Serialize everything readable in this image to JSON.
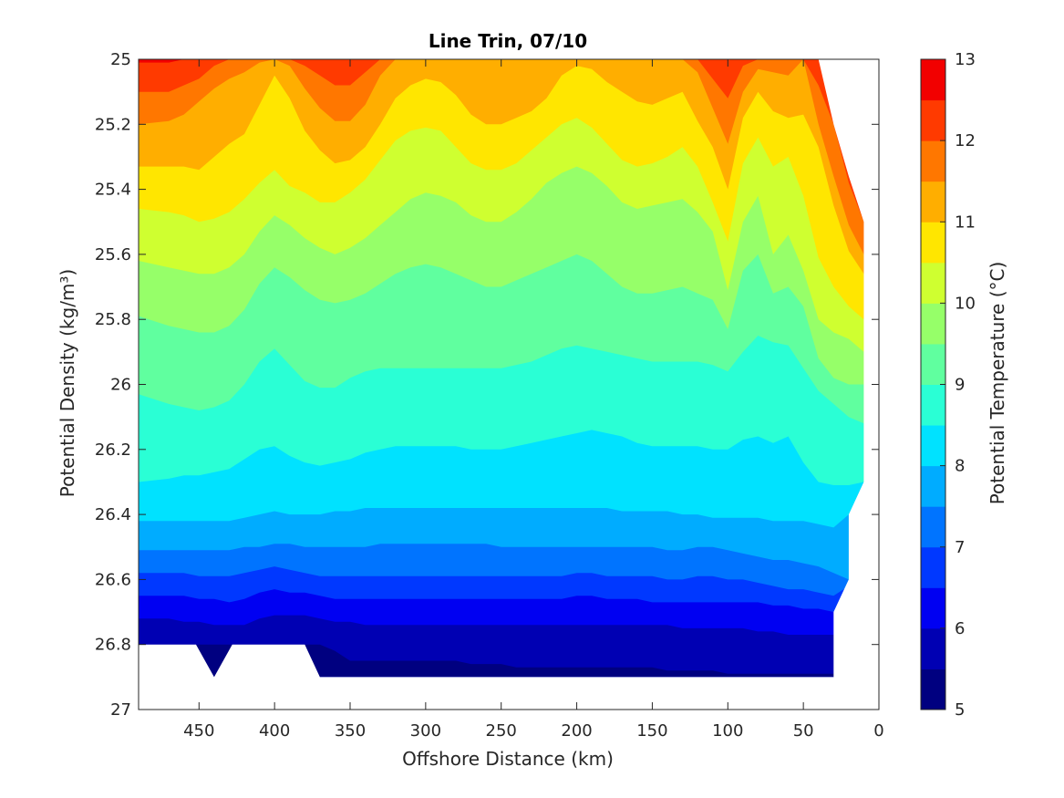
{
  "chart_data": {
    "type": "filled-contour",
    "title": "Line Trin, 07/10",
    "xlabel": "Offshore Distance (km)",
    "ylabel": "Potential Density (kg/m³)",
    "colorbar_label": "Potential Temperature (°C)",
    "x_range": [
      490,
      0
    ],
    "x_reversed": true,
    "y_range": [
      25,
      27
    ],
    "y_reversed": true,
    "x_ticks": [
      "450",
      "400",
      "350",
      "300",
      "250",
      "200",
      "150",
      "100",
      "50",
      "0"
    ],
    "y_ticks": [
      "25",
      "25.2",
      "25.4",
      "25.6",
      "25.8",
      "26",
      "26.2",
      "26.4",
      "26.6",
      "26.8",
      "27"
    ],
    "colorbar_ticks": [
      "5",
      "6",
      "7",
      "8",
      "9",
      "10",
      "11",
      "12",
      "13"
    ],
    "colorbar_range": [
      5,
      13
    ],
    "level_step": 0.5,
    "levels": [
      5,
      5.5,
      6,
      6.5,
      7,
      7.5,
      8,
      8.5,
      9,
      9.5,
      10,
      10.5,
      11,
      11.5,
      12,
      12.5,
      13
    ],
    "colormap": [
      "#000080",
      "#0000b3",
      "#0000f2",
      "#0038ff",
      "#0074ff",
      "#00acff",
      "#00e2ff",
      "#2affd5",
      "#60ff9f",
      "#96ff69",
      "#cfff30",
      "#ffe600",
      "#ffae00",
      "#ff7700",
      "#ff3a00",
      "#f20000",
      "#b30000"
    ],
    "x_stations": [
      490,
      470,
      460,
      450,
      440,
      430,
      420,
      410,
      400,
      390,
      380,
      370,
      360,
      350,
      340,
      330,
      320,
      310,
      300,
      290,
      280,
      270,
      260,
      250,
      240,
      230,
      220,
      210,
      200,
      190,
      180,
      170,
      160,
      150,
      140,
      130,
      120,
      110,
      100,
      90,
      80,
      70,
      60,
      50,
      40,
      30,
      20,
      10
    ],
    "data_bottom_density": 26.9,
    "shallow_gap": {
      "x_start": 490,
      "x_end": 370,
      "bottom_density": 26.8,
      "notch_x": 440,
      "notch_density": 26.9
    },
    "isopycnal_depth_of_isotherms": [
      {
        "temperature": 12.5,
        "density": [
          25.01,
          25.01,
          25.0,
          25.0,
          25.0,
          25.0,
          25.0,
          25.0,
          25.0,
          25.0,
          25.0,
          25.0,
          25.0,
          25.0,
          25.0,
          25.0,
          25.0,
          25.0,
          25.0,
          25.0,
          25.0,
          25.0,
          25.0,
          25.0,
          25.0,
          25.0,
          25.0,
          25.0,
          25.0,
          25.0,
          25.0,
          25.0,
          25.0,
          25.0,
          25.0,
          25.0,
          25.0,
          25.0,
          25.0,
          25.0,
          25.0,
          25.0,
          25.0,
          25.0,
          25.0,
          25.0,
          25.0,
          25.0
        ]
      },
      {
        "temperature": 12.0,
        "density": [
          25.1,
          25.1,
          25.08,
          25.06,
          25.02,
          25.0,
          25.0,
          25.0,
          25.0,
          25.0,
          25.02,
          25.05,
          25.08,
          25.08,
          25.04,
          25.0,
          25.0,
          25.0,
          25.0,
          25.0,
          25.0,
          25.0,
          25.0,
          25.0,
          25.0,
          25.0,
          25.0,
          25.0,
          25.0,
          25.0,
          25.0,
          25.0,
          25.0,
          25.0,
          25.0,
          25.0,
          25.0,
          25.06,
          25.12,
          25.02,
          25.0,
          25.0,
          25.0,
          25.0,
          25.08,
          25.2,
          25.38,
          25.5
        ]
      },
      {
        "temperature": 11.5,
        "density": [
          25.2,
          25.19,
          25.17,
          25.13,
          25.09,
          25.06,
          25.04,
          25.01,
          25.0,
          25.02,
          25.09,
          25.15,
          25.19,
          25.19,
          25.14,
          25.05,
          25.0,
          25.0,
          25.0,
          25.0,
          25.0,
          25.0,
          25.0,
          25.0,
          25.0,
          25.0,
          25.0,
          25.0,
          25.0,
          25.0,
          25.0,
          25.0,
          25.0,
          25.0,
          25.0,
          25.0,
          25.04,
          25.15,
          25.26,
          25.1,
          25.03,
          25.04,
          25.05,
          25.0,
          25.2,
          25.36,
          25.51,
          25.6
        ]
      },
      {
        "temperature": 11.0,
        "density": [
          25.33,
          25.33,
          25.33,
          25.34,
          25.3,
          25.26,
          25.23,
          25.14,
          25.05,
          25.12,
          25.22,
          25.28,
          25.32,
          25.31,
          25.27,
          25.2,
          25.12,
          25.08,
          25.06,
          25.07,
          25.11,
          25.17,
          25.2,
          25.2,
          25.18,
          25.16,
          25.12,
          25.05,
          25.02,
          25.03,
          25.07,
          25.1,
          25.13,
          25.14,
          25.12,
          25.1,
          25.19,
          25.27,
          25.4,
          25.18,
          25.1,
          25.16,
          25.18,
          25.17,
          25.27,
          25.45,
          25.59,
          25.66
        ]
      },
      {
        "temperature": 10.5,
        "density": [
          25.46,
          25.47,
          25.48,
          25.5,
          25.49,
          25.47,
          25.43,
          25.38,
          25.34,
          25.39,
          25.41,
          25.44,
          25.44,
          25.41,
          25.37,
          25.31,
          25.25,
          25.22,
          25.21,
          25.22,
          25.27,
          25.32,
          25.34,
          25.34,
          25.32,
          25.28,
          25.24,
          25.2,
          25.18,
          25.21,
          25.26,
          25.31,
          25.33,
          25.32,
          25.3,
          25.27,
          25.33,
          25.44,
          25.56,
          25.32,
          25.24,
          25.33,
          25.3,
          25.42,
          25.61,
          25.7,
          25.76,
          25.8
        ]
      },
      {
        "temperature": 10.0,
        "density": [
          25.62,
          25.64,
          25.65,
          25.66,
          25.66,
          25.64,
          25.6,
          25.53,
          25.48,
          25.51,
          25.55,
          25.58,
          25.6,
          25.58,
          25.55,
          25.51,
          25.47,
          25.43,
          25.41,
          25.42,
          25.44,
          25.48,
          25.5,
          25.5,
          25.47,
          25.43,
          25.38,
          25.35,
          25.33,
          25.35,
          25.39,
          25.44,
          25.46,
          25.45,
          25.44,
          25.43,
          25.47,
          25.53,
          25.71,
          25.5,
          25.42,
          25.6,
          25.54,
          25.65,
          25.8,
          25.84,
          25.86,
          25.9
        ]
      },
      {
        "temperature": 9.5,
        "density": [
          25.79,
          25.82,
          25.83,
          25.84,
          25.84,
          25.82,
          25.77,
          25.69,
          25.64,
          25.67,
          25.71,
          25.74,
          25.75,
          25.74,
          25.72,
          25.69,
          25.66,
          25.64,
          25.63,
          25.64,
          25.66,
          25.68,
          25.7,
          25.7,
          25.68,
          25.66,
          25.64,
          25.62,
          25.6,
          25.62,
          25.66,
          25.7,
          25.72,
          25.72,
          25.71,
          25.7,
          25.72,
          25.74,
          25.83,
          25.65,
          25.6,
          25.72,
          25.7,
          25.76,
          25.92,
          25.98,
          26.0,
          26.0
        ]
      },
      {
        "temperature": 9.0,
        "density": [
          26.03,
          26.06,
          26.07,
          26.08,
          26.07,
          26.05,
          26.0,
          25.93,
          25.89,
          25.94,
          25.99,
          26.01,
          26.01,
          25.98,
          25.96,
          25.95,
          25.95,
          25.95,
          25.95,
          25.95,
          25.95,
          25.95,
          25.95,
          25.95,
          25.94,
          25.93,
          25.91,
          25.89,
          25.88,
          25.89,
          25.9,
          25.91,
          25.92,
          25.93,
          25.93,
          25.93,
          25.93,
          25.94,
          25.96,
          25.9,
          25.85,
          25.87,
          25.88,
          25.95,
          26.02,
          26.06,
          26.1,
          26.12
        ]
      },
      {
        "temperature": 8.5,
        "density": [
          26.3,
          26.29,
          26.28,
          26.28,
          26.27,
          26.26,
          26.23,
          26.2,
          26.19,
          26.22,
          26.24,
          26.25,
          26.24,
          26.23,
          26.21,
          26.2,
          26.19,
          26.19,
          26.19,
          26.19,
          26.19,
          26.2,
          26.2,
          26.2,
          26.19,
          26.18,
          26.17,
          26.16,
          26.15,
          26.14,
          26.15,
          26.16,
          26.18,
          26.19,
          26.19,
          26.19,
          26.19,
          26.2,
          26.2,
          26.17,
          26.16,
          26.18,
          26.16,
          26.24,
          26.3,
          26.31,
          26.31,
          26.3
        ]
      },
      {
        "temperature": 8.0,
        "density": [
          26.42,
          26.42,
          26.42,
          26.42,
          26.42,
          26.42,
          26.41,
          26.4,
          26.39,
          26.4,
          26.4,
          26.4,
          26.39,
          26.39,
          26.38,
          26.38,
          26.38,
          26.38,
          26.38,
          26.38,
          26.38,
          26.38,
          26.38,
          26.38,
          26.38,
          26.38,
          26.38,
          26.38,
          26.38,
          26.38,
          26.38,
          26.39,
          26.39,
          26.39,
          26.39,
          26.4,
          26.4,
          26.41,
          26.41,
          26.41,
          26.41,
          26.42,
          26.42,
          26.42,
          26.43,
          26.44,
          26.4,
          26.3
        ]
      },
      {
        "temperature": 7.5,
        "density": [
          26.51,
          26.51,
          26.51,
          26.51,
          26.51,
          26.51,
          26.5,
          26.5,
          26.49,
          26.49,
          26.5,
          26.5,
          26.5,
          26.5,
          26.5,
          26.49,
          26.49,
          26.49,
          26.49,
          26.49,
          26.49,
          26.49,
          26.49,
          26.5,
          26.5,
          26.5,
          26.5,
          26.5,
          26.5,
          26.5,
          26.5,
          26.5,
          26.5,
          26.5,
          26.51,
          26.51,
          26.5,
          26.5,
          26.51,
          26.52,
          26.53,
          26.54,
          26.54,
          26.55,
          26.56,
          26.58,
          26.6,
          26.6
        ]
      },
      {
        "temperature": 7.0,
        "density": [
          26.58,
          26.58,
          26.58,
          26.59,
          26.59,
          26.59,
          26.58,
          26.57,
          26.56,
          26.57,
          26.58,
          26.59,
          26.59,
          26.59,
          26.59,
          26.59,
          26.59,
          26.59,
          26.59,
          26.59,
          26.59,
          26.59,
          26.59,
          26.59,
          26.59,
          26.59,
          26.59,
          26.59,
          26.58,
          26.58,
          26.59,
          26.59,
          26.59,
          26.59,
          26.6,
          26.6,
          26.59,
          26.59,
          26.6,
          26.6,
          26.61,
          26.62,
          26.63,
          26.63,
          26.64,
          26.65,
          26.62,
          26.6
        ]
      },
      {
        "temperature": 6.5,
        "density": [
          26.65,
          26.65,
          26.65,
          26.66,
          26.66,
          26.67,
          26.66,
          26.64,
          26.63,
          26.64,
          26.64,
          26.65,
          26.66,
          26.66,
          26.66,
          26.66,
          26.66,
          26.66,
          26.66,
          26.66,
          26.66,
          26.66,
          26.66,
          26.66,
          26.66,
          26.66,
          26.66,
          26.66,
          26.65,
          26.65,
          26.66,
          26.66,
          26.66,
          26.67,
          26.67,
          26.67,
          26.67,
          26.67,
          26.67,
          26.67,
          26.67,
          26.68,
          26.68,
          26.69,
          26.69,
          26.7,
          26.7,
          26.7
        ]
      },
      {
        "temperature": 6.0,
        "density": [
          26.72,
          26.72,
          26.73,
          26.73,
          26.74,
          26.74,
          26.74,
          26.72,
          26.71,
          26.71,
          26.71,
          26.72,
          26.73,
          26.73,
          26.74,
          26.74,
          26.74,
          26.74,
          26.74,
          26.74,
          26.74,
          26.74,
          26.74,
          26.74,
          26.74,
          26.74,
          26.74,
          26.74,
          26.74,
          26.74,
          26.74,
          26.74,
          26.74,
          26.74,
          26.74,
          26.75,
          26.75,
          26.75,
          26.75,
          26.75,
          26.76,
          26.76,
          26.77,
          26.77,
          26.77,
          26.77,
          26.77,
          26.77
        ]
      },
      {
        "temperature": 5.5,
        "density": [
          26.8,
          26.8,
          26.8,
          26.8,
          26.8,
          26.8,
          26.8,
          26.8,
          26.8,
          26.8,
          26.8,
          26.8,
          26.82,
          26.85,
          26.85,
          26.85,
          26.85,
          26.85,
          26.85,
          26.85,
          26.85,
          26.86,
          26.86,
          26.86,
          26.87,
          26.87,
          26.87,
          26.87,
          26.87,
          26.87,
          26.87,
          26.87,
          26.87,
          26.87,
          26.88,
          26.88,
          26.88,
          26.88,
          26.89,
          26.89,
          26.89,
          26.89,
          26.89,
          26.89,
          26.89,
          26.89,
          26.89,
          26.89
        ]
      }
    ]
  }
}
